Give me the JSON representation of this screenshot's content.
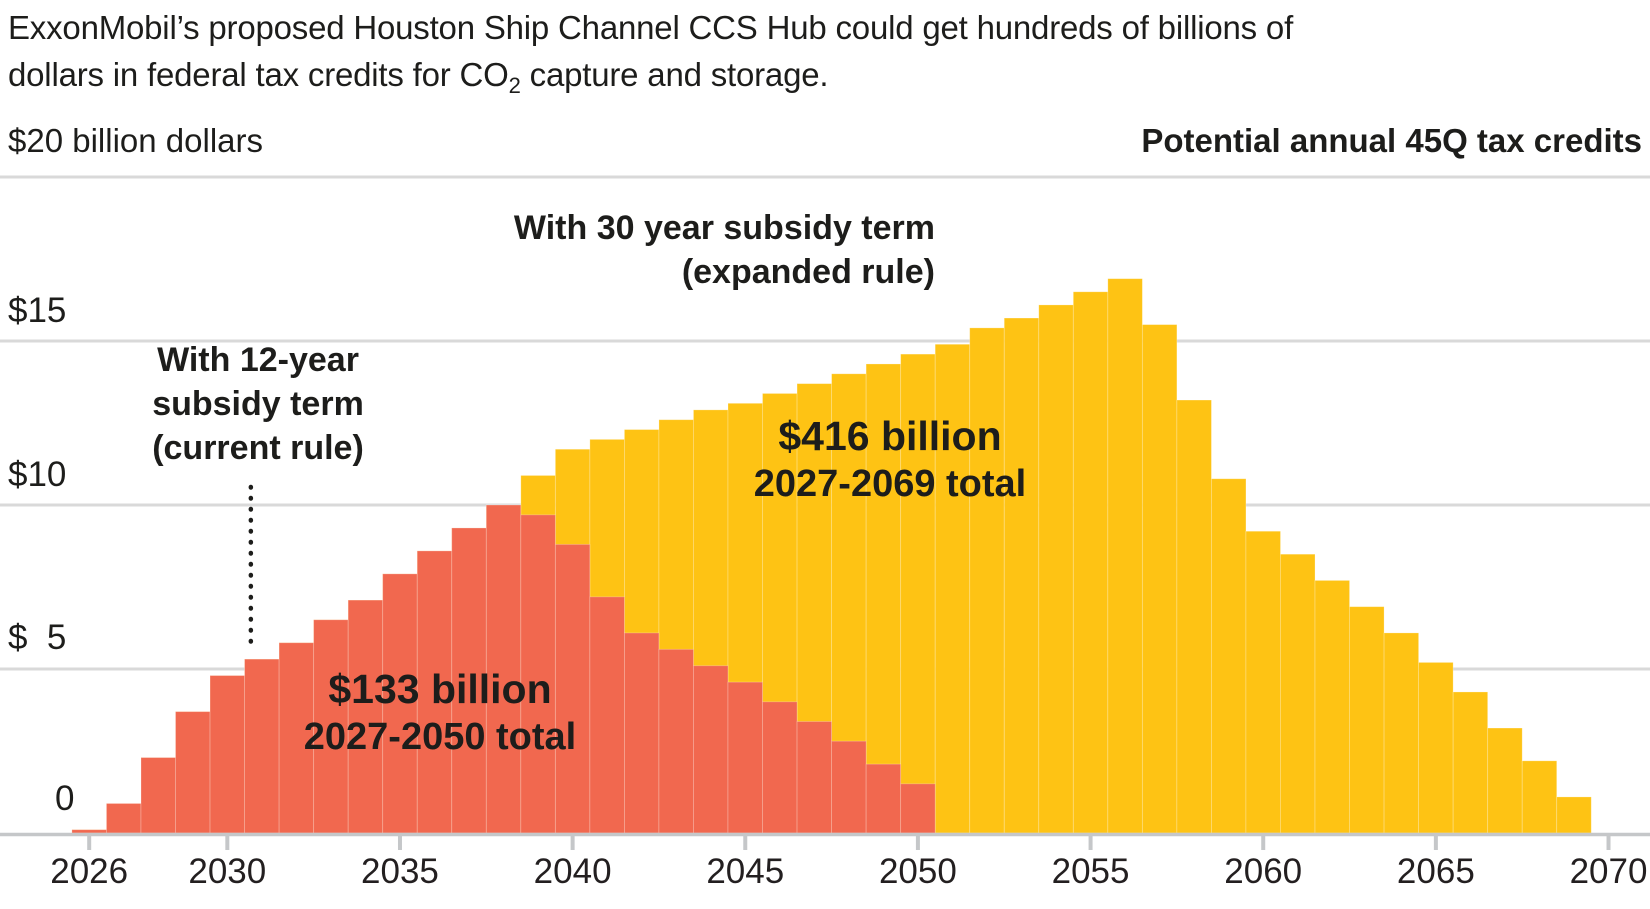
{
  "title": {
    "line1": "ExxonMobil’s proposed Houston Ship Channel CCS Hub could get hundreds of billions of",
    "line2_pre": "dollars in federal tax credits for CO",
    "line2_sub": "2",
    "line2_post": " capture and storage."
  },
  "axis_headers": {
    "left": "$20 billion dollars",
    "right": "Potential annual 45Q tax credits"
  },
  "y_axis": {
    "tick_labels": [
      "$15",
      "$10",
      "$  5",
      "0"
    ]
  },
  "annotations": {
    "current_rule": {
      "line1": "With 12-year",
      "line2": "subsidy term",
      "line3": "(current rule)"
    },
    "expanded_rule": {
      "line1": "With 30 year subsidy term",
      "line2": "(expanded rule)"
    },
    "red_total": {
      "amount": "$133 billion",
      "period": "2027-2050 total"
    },
    "yellow_total": {
      "amount": "$416 billion",
      "period": "2027-2069 total"
    }
  },
  "chart_data": {
    "type": "bar",
    "title": "ExxonMobil’s proposed Houston Ship Channel CCS Hub could get hundreds of billions of dollars in federal tax credits for CO2 capture and storage.",
    "ylabel": "$20 billion dollars",
    "right_label": "Potential annual 45Q tax credits",
    "unit": "billion dollars per year",
    "ylim": [
      0,
      20
    ],
    "yticks": [
      0,
      5,
      10,
      15,
      20
    ],
    "xticks": [
      2026,
      2030,
      2035,
      2040,
      2045,
      2050,
      2055,
      2060,
      2065,
      2070
    ],
    "grid": true,
    "x": [
      2026,
      2027,
      2028,
      2029,
      2030,
      2031,
      2032,
      2033,
      2034,
      2035,
      2036,
      2037,
      2038,
      2039,
      2040,
      2041,
      2042,
      2043,
      2044,
      2045,
      2046,
      2047,
      2048,
      2049,
      2050,
      2051,
      2052,
      2053,
      2054,
      2055,
      2056,
      2057,
      2058,
      2059,
      2060,
      2061,
      2062,
      2063,
      2064,
      2065,
      2066,
      2067,
      2068,
      2069
    ],
    "series": [
      {
        "id": "expanded-30yr",
        "name": "With 30 year subsidy term (expanded rule)",
        "total": "$416 billion, 2027-2069 total",
        "color": "#fec314",
        "values": [
          0.1,
          0.9,
          2.3,
          3.7,
          4.8,
          5.3,
          5.8,
          6.5,
          7.1,
          7.9,
          8.6,
          9.3,
          10.0,
          10.9,
          11.7,
          12.0,
          12.3,
          12.6,
          12.9,
          13.1,
          13.4,
          13.7,
          14.0,
          14.3,
          14.6,
          14.9,
          15.4,
          15.7,
          16.1,
          16.5,
          16.9,
          15.5,
          13.2,
          10.8,
          9.2,
          8.5,
          7.7,
          6.9,
          6.1,
          5.2,
          4.3,
          3.2,
          2.2,
          1.1
        ]
      },
      {
        "id": "current-12yr",
        "name": "With 12-year subsidy term (current rule)",
        "total": "$133 billion, 2027-2050 total",
        "color": "#f1684f",
        "values": [
          0.1,
          0.9,
          2.3,
          3.7,
          4.8,
          5.3,
          5.8,
          6.5,
          7.1,
          7.9,
          8.6,
          9.3,
          10.0,
          9.7,
          8.8,
          7.2,
          6.1,
          5.6,
          5.1,
          4.6,
          4.0,
          3.4,
          2.8,
          2.1,
          1.5
        ]
      }
    ],
    "layout": {
      "colors": {
        "grid": "#d9d9d9",
        "axis": "#c5c7c9",
        "text": "#1d1d1b"
      },
      "pointer_line_year": 2031
    }
  }
}
